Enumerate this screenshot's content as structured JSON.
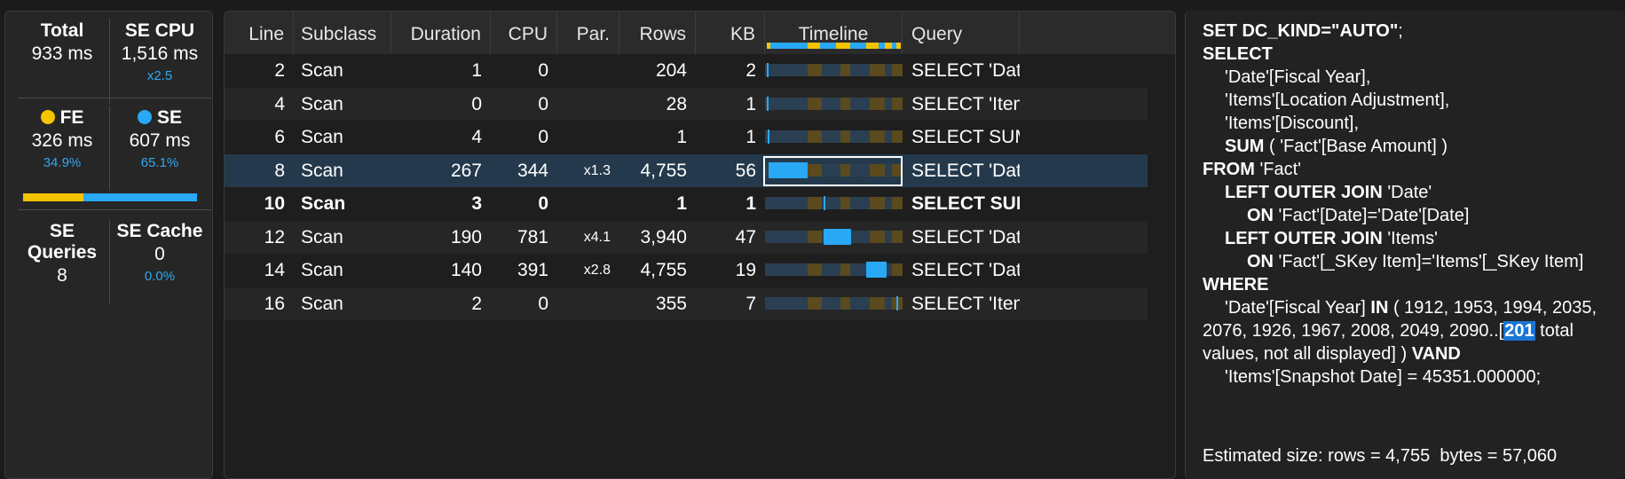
{
  "summary": {
    "total": {
      "label": "Total",
      "value": "933 ms"
    },
    "se_cpu": {
      "label": "SE CPU",
      "value": "1,516 ms",
      "sub": "x2.5"
    },
    "fe": {
      "label": "FE",
      "value": "326 ms",
      "sub": "34.9%",
      "color": "#f5c400"
    },
    "se": {
      "label": "SE",
      "value": "607 ms",
      "sub": "65.1%",
      "color": "#29a8f5"
    },
    "fe_se_ratio": 0.349,
    "se_queries": {
      "label": "SE Queries",
      "value": "8"
    },
    "se_cache": {
      "label": "SE Cache",
      "value": "0",
      "sub": "0.0%"
    }
  },
  "grid": {
    "columns": {
      "line": "Line",
      "subclass": "Subclass",
      "duration": "Duration",
      "cpu": "CPU",
      "par": "Par.",
      "rows": "Rows",
      "kb": "KB",
      "timeline": "Timeline",
      "query": "Query"
    },
    "rows": [
      {
        "line": "2",
        "subclass": "Scan",
        "duration": "1",
        "cpu": "0",
        "par": "",
        "rows": "204",
        "kb": "2",
        "query": "SELECT 'Date'[F",
        "start": 0.0,
        "dur": 0.001,
        "bold": false,
        "selected": false
      },
      {
        "line": "4",
        "subclass": "Scan",
        "duration": "0",
        "cpu": "0",
        "par": "",
        "rows": "28",
        "kb": "1",
        "query": "SELECT 'Items'[",
        "start": 0.0,
        "dur": 0.0,
        "bold": false,
        "selected": false
      },
      {
        "line": "6",
        "subclass": "Scan",
        "duration": "4",
        "cpu": "0",
        "par": "",
        "rows": "1",
        "kb": "1",
        "query": "SELECT SUM ( (",
        "start": 0.005,
        "dur": 0.004,
        "bold": false,
        "selected": false
      },
      {
        "line": "8",
        "subclass": "Scan",
        "duration": "267",
        "cpu": "344",
        "par": "x1.3",
        "rows": "4,755",
        "kb": "56",
        "query": "SELECT 'Date'[F",
        "start": 0.01,
        "dur": 0.286,
        "bold": false,
        "selected": true
      },
      {
        "line": "10",
        "subclass": "Scan",
        "duration": "3",
        "cpu": "0",
        "par": "",
        "rows": "1",
        "kb": "1",
        "query": "SELECT SUM (",
        "start": 0.41,
        "dur": 0.003,
        "bold": true,
        "selected": false
      },
      {
        "line": "12",
        "subclass": "Scan",
        "duration": "190",
        "cpu": "781",
        "par": "x4.1",
        "rows": "3,940",
        "kb": "47",
        "query": "SELECT 'Date'[F",
        "start": 0.41,
        "dur": 0.204,
        "bold": false,
        "selected": false
      },
      {
        "line": "14",
        "subclass": "Scan",
        "duration": "140",
        "cpu": "391",
        "par": "x2.8",
        "rows": "4,755",
        "kb": "19",
        "query": "SELECT 'Date'[F",
        "start": 0.72,
        "dur": 0.15,
        "bold": false,
        "selected": false
      },
      {
        "line": "16",
        "subclass": "Scan",
        "duration": "2",
        "cpu": "0",
        "par": "",
        "rows": "355",
        "kb": "7",
        "query": "SELECT 'Items'[",
        "start": 0.945,
        "dur": 0.002,
        "bold": false,
        "selected": false
      }
    ]
  },
  "query_text": {
    "l1a": "SET DC_KIND=",
    "l1b": "\"AUTO\"",
    "l1c": ";",
    "l2": "SELECT",
    "l3": "'Date'[Fiscal Year],",
    "l4": "'Items'[Location Adjustment],",
    "l5": "'Items'[Discount],",
    "l6a": "SUM",
    " l6b": "",
    "l6c": " ( 'Fact'[Base Amount] )",
    "l7a": "FROM",
    " l7b": "",
    "l7c": " 'Fact'",
    "l8a": "LEFT OUTER JOIN",
    "l8c": " 'Date'",
    "l9a": "ON",
    "l9c": " 'Fact'[Date]='Date'[Date]",
    "l10a": "LEFT OUTER JOIN",
    "l10c": " 'Items'",
    "l11a": "ON",
    "l11c": " 'Fact'[_SKey Item]='Items'[_SKey Item]",
    "l12": "WHERE",
    "l13a": "'Date'[Fiscal Year] ",
    "l13b": "IN",
    "l13c": " ( 1912, 1953, 1994, 2035,",
    "l14a": "2076, 1926, 1967, 2008, 2049, 2090..[",
    "l14b": "201",
    "l14c": " total",
    "l15a": "values, not all displayed] ) ",
    "l15b": "VAND",
    "l16": "'Items'[Snapshot Date] = 45351.000000;"
  },
  "estimated": "Estimated size: rows = 4,755  bytes = 57,060",
  "colors": {
    "fe": "#f5c400",
    "se": "#29a8f5",
    "selected_row": "#243a4c"
  }
}
